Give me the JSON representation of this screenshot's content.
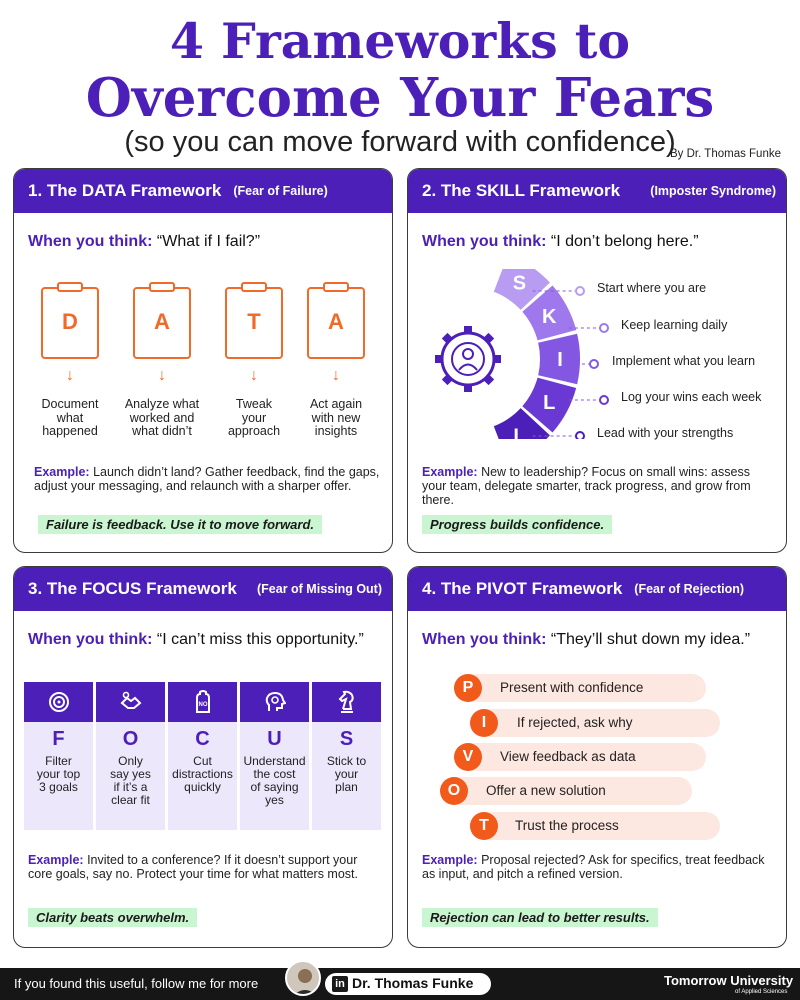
{
  "header": {
    "title_line1": "4 Frameworks to",
    "title_line2": "Overcome Your Fears",
    "subtitle": "(so you can move forward with confidence)",
    "author": "By Dr. Thomas Funke"
  },
  "think_prefix": "When you think:",
  "example_prefix": "Example:",
  "card1": {
    "title": "1. The DATA Framework",
    "tag": "(Fear of Failure)",
    "quote": "“What if I fail?”",
    "steps": [
      {
        "letter": "D",
        "text": [
          "Document",
          "what",
          "happened"
        ]
      },
      {
        "letter": "A",
        "text": [
          "Analyze what",
          "worked and",
          "what didn’t"
        ]
      },
      {
        "letter": "T",
        "text": [
          "Tweak",
          "your",
          "approach"
        ]
      },
      {
        "letter": "A",
        "text": [
          "Act again",
          "with new",
          "insights"
        ]
      }
    ],
    "example": "Launch didn’t land? Gather feedback, find the gaps, adjust your messaging, and relaunch with a sharper offer.",
    "moral": "Failure is feedback. Use it to move forward."
  },
  "card2": {
    "title": "2. The SKILL Framework",
    "tag": "(Imposter Syndrome)",
    "quote": "“I don’t belong here.”",
    "letters": [
      "S",
      "K",
      "I",
      "L",
      "L"
    ],
    "labels": [
      "Start where you are",
      "Keep learning daily",
      "Implement what you learn",
      "Log your wins each week",
      "Lead with your strengths"
    ],
    "example": "New to leadership? Focus on small wins: assess your team, delegate smarter, track progress, and grow from there.",
    "moral": "Progress builds confidence."
  },
  "card3": {
    "title": "3. The FOCUS Framework",
    "tag": "(Fear of Missing Out)",
    "quote": "“I can’t miss this opportunity.”",
    "cols": [
      {
        "letter": "F",
        "icon": "target-icon",
        "text": [
          "Filter",
          "your top",
          "3 goals"
        ]
      },
      {
        "letter": "O",
        "icon": "handshake-icon",
        "text": [
          "Only",
          "say yes",
          "if it’s a",
          "clear fit"
        ]
      },
      {
        "letter": "C",
        "icon": "stop-hand-icon",
        "icon_text": "NO",
        "text": [
          "Cut",
          "distractions",
          "quickly"
        ]
      },
      {
        "letter": "U",
        "icon": "head-gear-icon",
        "text": [
          "Understand",
          "the cost",
          "of saying",
          "yes"
        ]
      },
      {
        "letter": "S",
        "icon": "chess-knight-icon",
        "text": [
          "Stick to",
          "your",
          "plan"
        ]
      }
    ],
    "example": "Invited to a conference? If it doesn’t support your core goals, say no. Protect your time for what matters most.",
    "moral": "Clarity beats overwhelm."
  },
  "card4": {
    "title": "4. The PIVOT Framework",
    "tag": "(Fear of Rejection)",
    "quote": "“They’ll shut down my idea.”",
    "rows": [
      {
        "letter": "P",
        "text": "Present with confidence"
      },
      {
        "letter": "I",
        "text": "If rejected, ask why"
      },
      {
        "letter": "V",
        "text": "View feedback as data"
      },
      {
        "letter": "O",
        "text": "Offer a new solution"
      },
      {
        "letter": "T",
        "text": "Trust the process"
      }
    ],
    "example": "Proposal rejected? Ask for specifics, treat feedback as input, and pitch a refined version.",
    "moral": "Rejection can lead to better results."
  },
  "footer": {
    "follow": "If you found this useful, follow me for more",
    "linkedin": "in",
    "name": "Dr. Thomas Funke",
    "brand": "Tomorrow University",
    "brand_sub": "of Applied Sciences"
  },
  "colors": {
    "accent": "#4b1fb8",
    "orange": "#f06a2a",
    "highlight": "#c9f5d0"
  }
}
